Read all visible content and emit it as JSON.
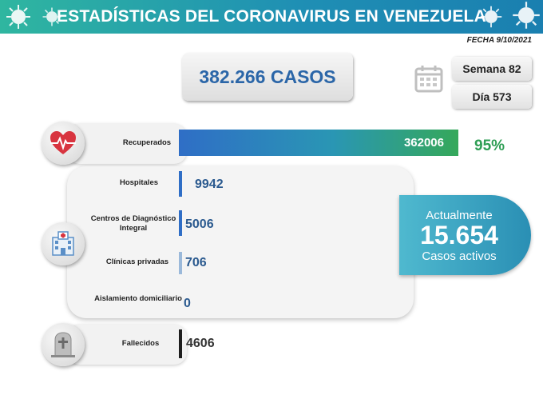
{
  "header": {
    "title": "ESTADÍSTICAS DEL CORONAVIRUS EN VENEZUELA",
    "decoration_icon": "virus-icon"
  },
  "fecha": "FECHA 9/10/2021",
  "total_casos": "382.266 CASOS",
  "calendar_icon": "calendar-icon",
  "semana": "Semana 82",
  "dia": "Día 573",
  "recuperados": {
    "label": "Recuperados",
    "value": "362006",
    "percent": "95%",
    "icon": "heart-pulse-icon"
  },
  "hospitalizados": {
    "icon": "hospital-icon",
    "items": [
      {
        "label": "Hospitales",
        "value": "9942"
      },
      {
        "label": "Centros de Diagnóstico Integral",
        "value": "5006"
      },
      {
        "label": "Clínicas privadas",
        "value": "706"
      },
      {
        "label": "Aislamiento domiciliario",
        "value": "0"
      }
    ]
  },
  "fallecidos": {
    "label": "Fallecidos",
    "value": "4606",
    "icon": "tombstone-icon"
  },
  "activos": {
    "line1": "Actualmente",
    "number": "15.654",
    "line3": "Casos activos"
  },
  "colors": {
    "header_start": "#2fb6a0",
    "header_end": "#1a7fb0",
    "accent_blue": "#2b66a8",
    "green": "#2e9e54",
    "activos_bg": "#3aa3c2"
  }
}
